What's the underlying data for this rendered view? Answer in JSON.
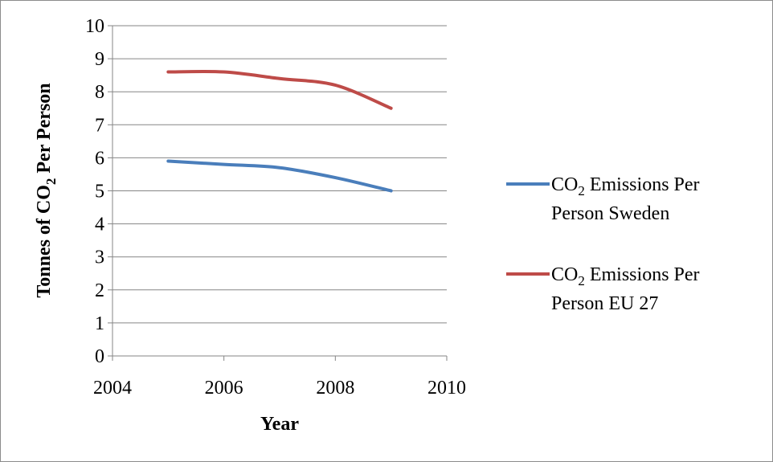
{
  "chart_data": {
    "type": "line",
    "xlabel": "Year",
    "ylabel_prefix": "Tonnes of CO",
    "ylabel_subscript": "2",
    "ylabel_suffix": " Per Person",
    "xlim": [
      2004,
      2010
    ],
    "ylim": [
      0,
      10
    ],
    "xticks": [
      2004,
      2006,
      2008,
      2010
    ],
    "yticks": [
      0,
      1,
      2,
      3,
      4,
      5,
      6,
      7,
      8,
      9,
      10
    ],
    "grid": true,
    "legend_position": "right",
    "series": [
      {
        "name_line1_prefix": "CO",
        "name_line1_subscript": "2",
        "name_line1_suffix": " Emissions Per",
        "name_line2": "Person  Sweden",
        "color": "#4a7ebb",
        "x": [
          2005,
          2006,
          2007,
          2008,
          2009
        ],
        "y": [
          5.9,
          5.8,
          5.7,
          5.4,
          5.0
        ]
      },
      {
        "name_line1_prefix": "CO",
        "name_line1_subscript": "2",
        "name_line1_suffix": " Emissions Per",
        "name_line2": "Person  EU 27",
        "color": "#be4b48",
        "x": [
          2005,
          2006,
          2007,
          2008,
          2009
        ],
        "y": [
          8.6,
          8.6,
          8.4,
          8.2,
          7.5
        ]
      }
    ]
  }
}
